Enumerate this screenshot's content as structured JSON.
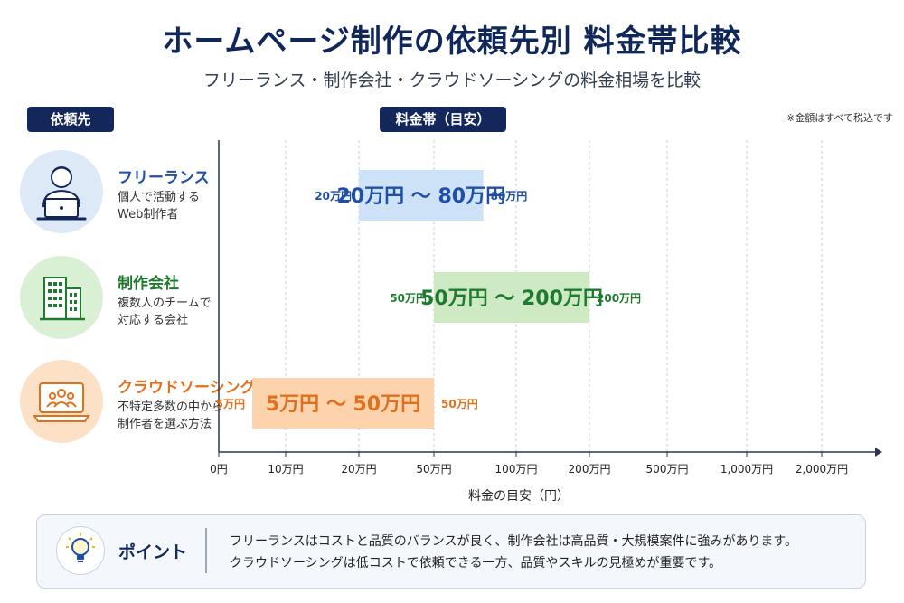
{
  "title": "ホームページ制作の依頼先別 料金帯比較",
  "subtitle": "フリーランス・制作会社・クラウドソーシングの料金相場を比較",
  "left_header": "依頼先",
  "chart_header": "料金帯（目安）",
  "note": "※金額はすべて税込です",
  "providers": [
    {
      "name": "フリーランス",
      "desc": "個人で活動する\nWeb制作者",
      "color": "#1f4fa8",
      "icon": "freelancer-laptop-person-icon"
    },
    {
      "name": "制作会社",
      "desc": "複数人のチームで\n対応する会社",
      "color": "#1e7a2e",
      "icon": "office-building-icon"
    },
    {
      "name": "クラウドソーシング",
      "desc": "不特定多数の中から\n制作者を選ぶ方法",
      "color": "#e0701b",
      "icon": "laptop-group-icon"
    }
  ],
  "chart_data": {
    "type": "bar",
    "orientation": "horizontal",
    "subtype": "range",
    "xlabel": "料金の目安（円）",
    "x_ticks": [
      "0円",
      "10万円",
      "20万円",
      "50万円",
      "100万円",
      "200万円",
      "500万円",
      "1,000万円",
      "2,000万円"
    ],
    "x_tick_values": [
      0,
      100000,
      200000,
      500000,
      1000000,
      2000000,
      5000000,
      10000000,
      20000000
    ],
    "grid": true,
    "series": [
      {
        "category": "フリーランス",
        "low": 200000,
        "high": 800000,
        "low_label": "20万円",
        "high_label": "80万円",
        "bar_label": "20万円 ～ 80万円",
        "fill": "#cde1f7",
        "text_color": "#1f4fa8"
      },
      {
        "category": "制作会社",
        "low": 500000,
        "high": 2000000,
        "low_label": "50万円",
        "high_label": "200万円",
        "bar_label": "50万円 ～ 200万円",
        "fill": "#cdeac4",
        "text_color": "#1e7a2e"
      },
      {
        "category": "クラウドソーシング",
        "low": 50000,
        "high": 500000,
        "low_label": "5万円",
        "high_label": "50万円",
        "bar_label": "5万円 ～ 50万円",
        "fill": "#fcd3ad",
        "text_color": "#e0701b"
      }
    ]
  },
  "point": {
    "label": "ポイント",
    "line1": "フリーランスはコストと品質のバランスが良く、制作会社は高品質・大規模案件に強みがあります。",
    "line2": "クラウドソーシングは低コストで依頼できる一方、品質やスキルの見極めが重要です。",
    "icon": "lightbulb-icon"
  }
}
